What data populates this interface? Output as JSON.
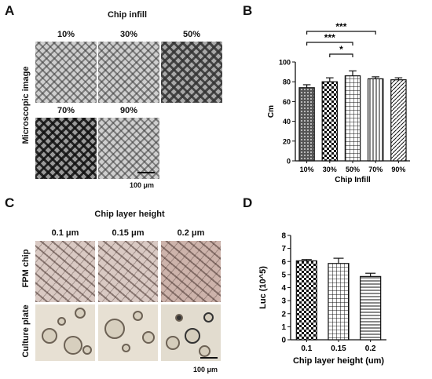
{
  "panels": {
    "A": {
      "letter": "A",
      "title": "Chip infill",
      "side_label": "Microscopic image",
      "labels": [
        "10%",
        "30%",
        "50%",
        "70%",
        "90%"
      ],
      "scale": "100 μm"
    },
    "B": {
      "letter": "B"
    },
    "C": {
      "letter": "C",
      "title": "Chip layer height",
      "labels": [
        "0.1 μm",
        "0.15 μm",
        "0.2 μm"
      ],
      "row_labels": [
        "FPM chip",
        "Culture plate"
      ],
      "scale": "100 μm"
    },
    "D": {
      "letter": "D"
    }
  },
  "chart_data": [
    {
      "type": "bar",
      "categories": [
        "10%",
        "30%",
        "50%",
        "70%",
        "90%"
      ],
      "values": [
        74,
        80,
        86,
        83,
        82
      ],
      "errors": [
        3,
        4,
        5,
        2,
        2
      ],
      "xlabel": "Chip Infill",
      "ylabel": "Cm",
      "ylim": [
        0,
        100
      ],
      "yticks": [
        "0",
        "20",
        "40",
        "60",
        "80",
        "100"
      ],
      "significance": [
        {
          "from": "10%",
          "to": "70%",
          "label": "***"
        },
        {
          "from": "10%",
          "to": "50%",
          "label": "***"
        },
        {
          "from": "30%",
          "to": "50%",
          "label": "*"
        }
      ],
      "patterns": [
        "dots",
        "checker",
        "grid",
        "vlines",
        "diag"
      ]
    },
    {
      "type": "bar",
      "categories": [
        "0.1",
        "0.15",
        "0.2"
      ],
      "values": [
        6.05,
        5.85,
        4.85
      ],
      "errors": [
        0.1,
        0.4,
        0.25
      ],
      "xlabel": "Chip layer height (um)",
      "ylabel": "Luc (10^5)",
      "ylim": [
        0,
        8
      ],
      "yticks": [
        "0",
        "1",
        "2",
        "3",
        "4",
        "5",
        "6",
        "7",
        "8"
      ],
      "patterns": [
        "checker",
        "grid",
        "hlines"
      ]
    }
  ]
}
